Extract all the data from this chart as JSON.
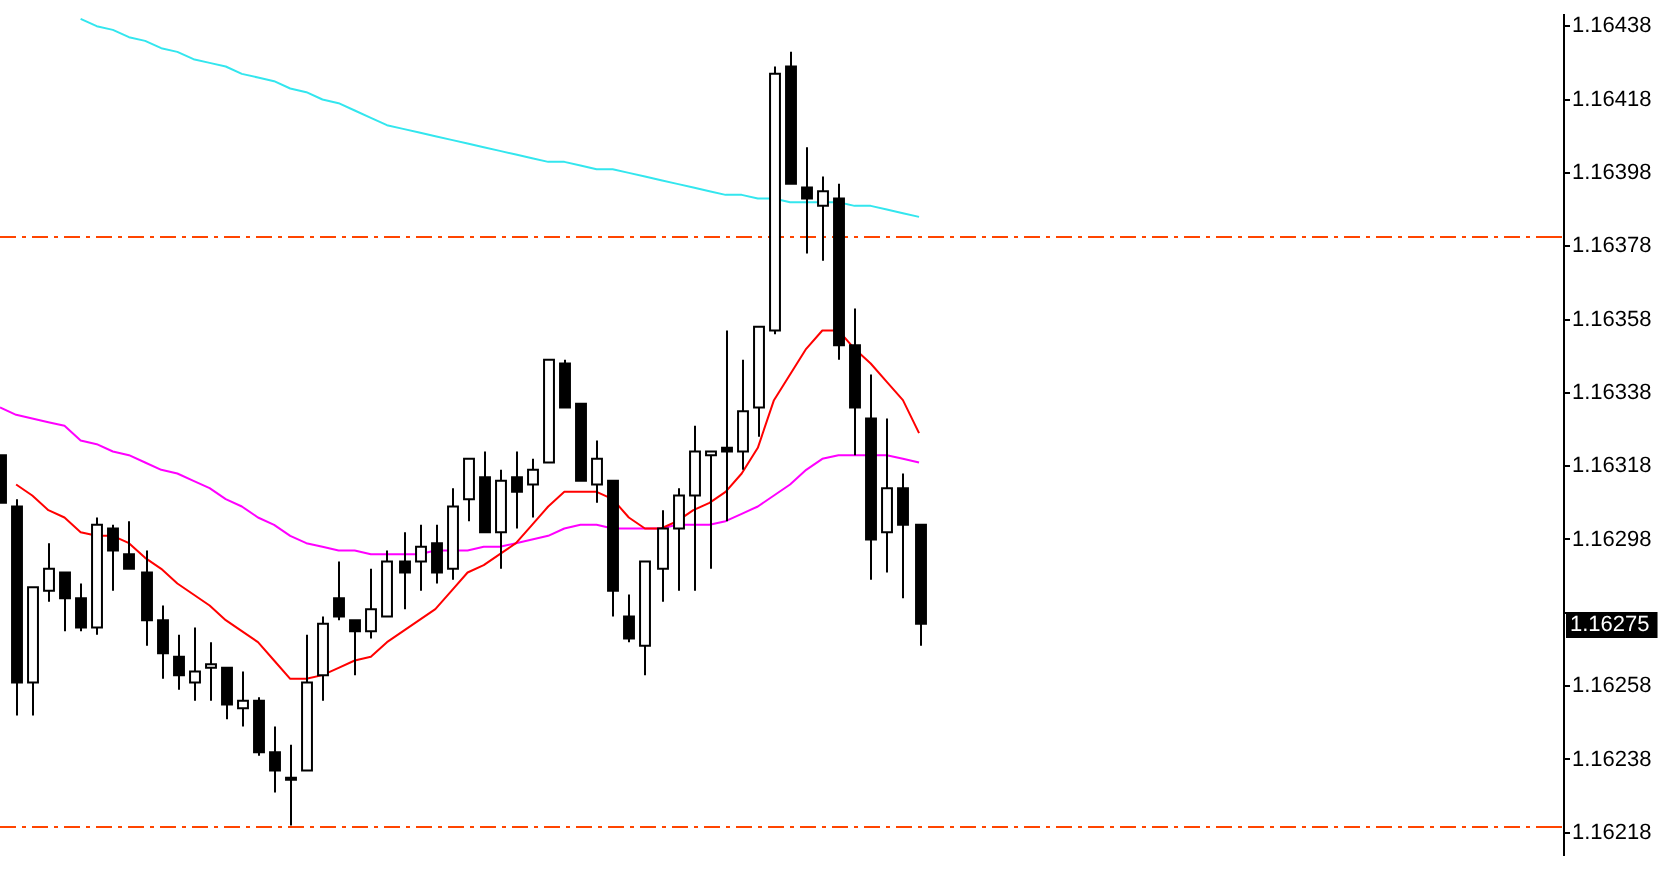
{
  "chart_data": {
    "type": "candlestick",
    "categories": [
      null,
      null,
      null,
      null,
      null,
      null,
      null,
      null,
      null,
      null,
      null,
      null,
      null,
      null,
      null,
      null,
      null,
      null,
      null,
      null,
      null,
      null,
      null,
      null,
      null,
      null,
      null,
      null,
      null,
      null,
      null,
      null,
      null,
      null,
      null,
      null,
      null,
      null,
      null,
      null,
      null,
      null,
      null,
      null,
      null,
      null,
      null,
      null,
      null,
      null,
      null,
      null,
      null,
      null,
      null,
      null,
      null,
      null,
      null,
      null,
      null,
      null,
      null,
      null,
      null,
      null,
      null,
      null,
      null,
      null,
      null,
      null,
      null,
      null,
      null,
      null,
      null,
      null,
      null,
      null,
      null,
      null,
      null,
      null,
      null,
      null,
      null,
      null,
      null,
      null,
      null,
      null,
      null,
      null,
      null,
      null,
      null,
      null
    ],
    "ohlc": [
      [
        1.16321,
        1.16321,
        1.16308,
        1.16308
      ],
      [
        1.16307,
        1.16309,
        1.1625,
        1.16259
      ],
      [
        1.16259,
        1.16285,
        1.1625,
        1.16285
      ],
      [
        1.16284,
        1.16297,
        1.16281,
        1.1629
      ],
      [
        1.16289,
        1.16289,
        1.16273,
        1.16282
      ],
      [
        1.16282,
        1.16286,
        1.16273,
        1.16274
      ],
      [
        1.16274,
        1.16304,
        1.16272,
        1.16302
      ],
      [
        1.16301,
        1.16302,
        1.16284,
        1.16295
      ],
      [
        1.16294,
        1.16303,
        1.1629,
        1.1629
      ],
      [
        1.16289,
        1.16295,
        1.16269,
        1.16276
      ],
      [
        1.16276,
        1.1628,
        1.1626,
        1.16267
      ],
      [
        1.16266,
        1.16272,
        1.16257,
        1.16261
      ],
      [
        1.16259,
        1.16274,
        1.16254,
        1.16262
      ],
      [
        1.16263,
        1.1627,
        1.16254,
        1.16264
      ],
      [
        1.16263,
        1.16263,
        1.16249,
        1.16253
      ],
      [
        1.16252,
        1.16262,
        1.16247,
        1.16254
      ],
      [
        1.16254,
        1.16255,
        1.16239,
        1.1624
      ],
      [
        1.1624,
        1.16247,
        1.16229,
        1.16235
      ],
      [
        1.16233,
        1.16242,
        1.1622,
        1.16233
      ],
      [
        1.16235,
        1.16272,
        1.16235,
        1.16259
      ],
      [
        1.16261,
        1.16277,
        1.16254,
        1.16275
      ],
      [
        1.16282,
        1.16292,
        1.16276,
        1.16277
      ],
      [
        1.16276,
        1.16276,
        1.16261,
        1.16273
      ],
      [
        1.16273,
        1.1629,
        1.16271,
        1.16279
      ],
      [
        1.16277,
        1.16295,
        1.16277,
        1.16292
      ],
      [
        1.16292,
        1.163,
        1.16279,
        1.16289
      ],
      [
        1.16292,
        1.16302,
        1.16284,
        1.16296
      ],
      [
        1.16297,
        1.16302,
        1.16286,
        1.16289
      ],
      [
        1.1629,
        1.16312,
        1.16287,
        1.16307
      ],
      [
        1.16309,
        1.1632,
        1.16303,
        1.1632
      ],
      [
        1.16315,
        1.16322,
        1.163,
        1.163
      ],
      [
        1.163,
        1.16317,
        1.1629,
        1.16314
      ],
      [
        1.16315,
        1.16322,
        1.16301,
        1.16311
      ],
      [
        1.16313,
        1.1632,
        1.16304,
        1.16317
      ],
      [
        1.16319,
        1.16347,
        1.16319,
        1.16347
      ],
      [
        1.16346,
        1.16347,
        1.16334,
        1.16334
      ],
      [
        1.16335,
        1.16335,
        1.16314,
        1.16314
      ],
      [
        1.16313,
        1.16325,
        1.16308,
        1.1632
      ],
      [
        1.16314,
        1.16314,
        1.16277,
        1.16284
      ],
      [
        1.16277,
        1.16283,
        1.1627,
        1.16271
      ],
      [
        1.16269,
        1.16292,
        1.16261,
        1.16292
      ],
      [
        1.1629,
        1.16306,
        1.16281,
        1.16301
      ],
      [
        1.16301,
        1.16312,
        1.16284,
        1.1631
      ],
      [
        1.1631,
        1.16329,
        1.16284,
        1.16322
      ],
      [
        1.16321,
        1.16322,
        1.1629,
        1.16322
      ],
      [
        1.16323,
        1.16355,
        1.16303,
        1.16322
      ],
      [
        1.16322,
        1.16347,
        1.16317,
        1.16333
      ],
      [
        1.16334,
        1.16356,
        1.16326,
        1.16356
      ],
      [
        1.16355,
        1.16427,
        1.16354,
        1.16425
      ],
      [
        1.16427,
        1.16431,
        1.16395,
        1.16395
      ],
      [
        1.16394,
        1.16405,
        1.16376,
        1.16391
      ],
      [
        1.16389,
        1.16397,
        1.16374,
        1.16393
      ],
      [
        1.16391,
        1.16395,
        1.16347,
        1.16351
      ],
      [
        1.16351,
        1.16361,
        1.16321,
        1.16334
      ],
      [
        1.16331,
        1.16343,
        1.16287,
        1.16298
      ],
      [
        1.163,
        1.16331,
        1.16289,
        1.16312
      ],
      [
        1.16312,
        1.16316,
        1.16282,
        1.16302
      ],
      [
        1.16302,
        1.16302,
        1.16269,
        1.16275
      ],
      null,
      null,
      null,
      null,
      null,
      null,
      null,
      null,
      null,
      null,
      null,
      null,
      null,
      null,
      null,
      null,
      null,
      null,
      null,
      null,
      null,
      null,
      null,
      null,
      null,
      null,
      null,
      null,
      null,
      null,
      null,
      null,
      null,
      null,
      null,
      null,
      null,
      null,
      null,
      null
    ],
    "series": [
      {
        "type": "line",
        "color": "#33e6ee",
        "values": [
          null,
          null,
          null,
          null,
          null,
          1.1644,
          1.16438,
          1.16437,
          1.16435,
          1.16434,
          1.16432,
          1.16431,
          1.16429,
          1.16428,
          1.16427,
          1.16425,
          1.16424,
          1.16423,
          1.16421,
          1.1642,
          1.16418,
          1.16417,
          1.16415,
          1.16413,
          1.16411,
          1.1641,
          1.16409,
          1.16408,
          1.16407,
          1.16406,
          1.16405,
          1.16404,
          1.16403,
          1.16402,
          1.16401,
          1.16401,
          1.164,
          1.16399,
          1.16399,
          1.16398,
          1.16397,
          1.16396,
          1.16395,
          1.16394,
          1.16393,
          1.16392,
          1.16392,
          1.16391,
          1.16391,
          1.1639,
          1.1639,
          1.1639,
          1.1639,
          1.16389,
          1.16389,
          1.16388,
          1.16387,
          1.16386,
          null,
          null,
          null,
          null,
          null,
          null,
          null,
          null,
          null,
          null,
          null,
          null,
          null,
          null,
          null,
          null,
          null,
          null,
          null,
          null,
          null,
          null,
          null,
          null,
          null,
          null,
          null,
          null,
          null,
          null,
          null,
          null,
          null,
          null,
          null,
          null,
          null,
          null,
          null,
          null
        ]
      },
      {
        "type": "line",
        "color": "#ff0000",
        "values": [
          null,
          1.16313,
          1.1631,
          1.16306,
          1.16304,
          1.163,
          1.16299,
          1.16299,
          1.16297,
          1.16293,
          1.1629,
          1.16286,
          1.16283,
          1.1628,
          1.16276,
          1.16273,
          1.1627,
          1.16265,
          1.1626,
          1.1626,
          1.16261,
          1.16263,
          1.16265,
          1.16266,
          1.1627,
          1.16273,
          1.16276,
          1.16279,
          1.16284,
          1.16289,
          1.16291,
          1.16294,
          1.16297,
          1.16302,
          1.16307,
          1.16311,
          1.16311,
          1.16311,
          1.16309,
          1.16304,
          1.16301,
          1.16301,
          1.16303,
          1.16306,
          1.16308,
          1.16311,
          1.16316,
          1.16323,
          1.16336,
          1.16343,
          1.1635,
          1.16355,
          1.16355,
          1.1635,
          1.16346,
          1.16341,
          1.16336,
          1.16327,
          null,
          null,
          null,
          null,
          null,
          null,
          null,
          null,
          null,
          null,
          null,
          null,
          null,
          null,
          null,
          null,
          null,
          null,
          null,
          null,
          null,
          null,
          null,
          null,
          null,
          null,
          null,
          null,
          null,
          null,
          null,
          null,
          null,
          null,
          null,
          null,
          null,
          null,
          null,
          null
        ]
      },
      {
        "type": "line",
        "color": "#ff00ff",
        "values": [
          1.16334,
          1.16332,
          1.16331,
          1.1633,
          1.16329,
          1.16325,
          1.16324,
          1.16322,
          1.16321,
          1.16319,
          1.16317,
          1.16316,
          1.16314,
          1.16312,
          1.16309,
          1.16307,
          1.16304,
          1.16302,
          1.16299,
          1.16297,
          1.16296,
          1.16295,
          1.16295,
          1.16294,
          1.16294,
          1.16294,
          1.16294,
          1.16295,
          1.16295,
          1.16295,
          1.16296,
          1.16296,
          1.16297,
          1.16298,
          1.16299,
          1.16301,
          1.16302,
          1.16302,
          1.16301,
          1.16301,
          1.16301,
          1.16301,
          1.16302,
          1.16302,
          1.16302,
          1.16303,
          1.16305,
          1.16307,
          1.1631,
          1.16313,
          1.16317,
          1.1632,
          1.16321,
          1.16321,
          1.16321,
          1.16321,
          1.1632,
          1.16319,
          null,
          null,
          null,
          null,
          null,
          null,
          null,
          null,
          null,
          null,
          null,
          null,
          null,
          null,
          null,
          null,
          null,
          null,
          null,
          null,
          null,
          null,
          null,
          null,
          null,
          null,
          null,
          null,
          null,
          null,
          null,
          null,
          null,
          null,
          null,
          null,
          null,
          null,
          null,
          null
        ]
      }
    ],
    "ylim": [
      1.16212,
      1.16441
    ],
    "yticks": [
      1.16218,
      1.16238,
      1.16258,
      {
        "value": 1.16278,
        "label": null
      },
      1.16298,
      1.16318,
      1.16338,
      1.16358,
      1.16378,
      1.16398,
      1.16418,
      1.16438
    ],
    "ref_lines": [
      {
        "axis": "y",
        "value": 1.16381,
        "color": "#ff4500",
        "line_style": "dashdot"
      },
      {
        "axis": "y",
        "value": 1.1622,
        "color": "#ff4500",
        "line_style": "dashdot"
      }
    ],
    "annotations": [
      "1.16275"
    ],
    "tick_labels": "y",
    "legend": false
  }
}
